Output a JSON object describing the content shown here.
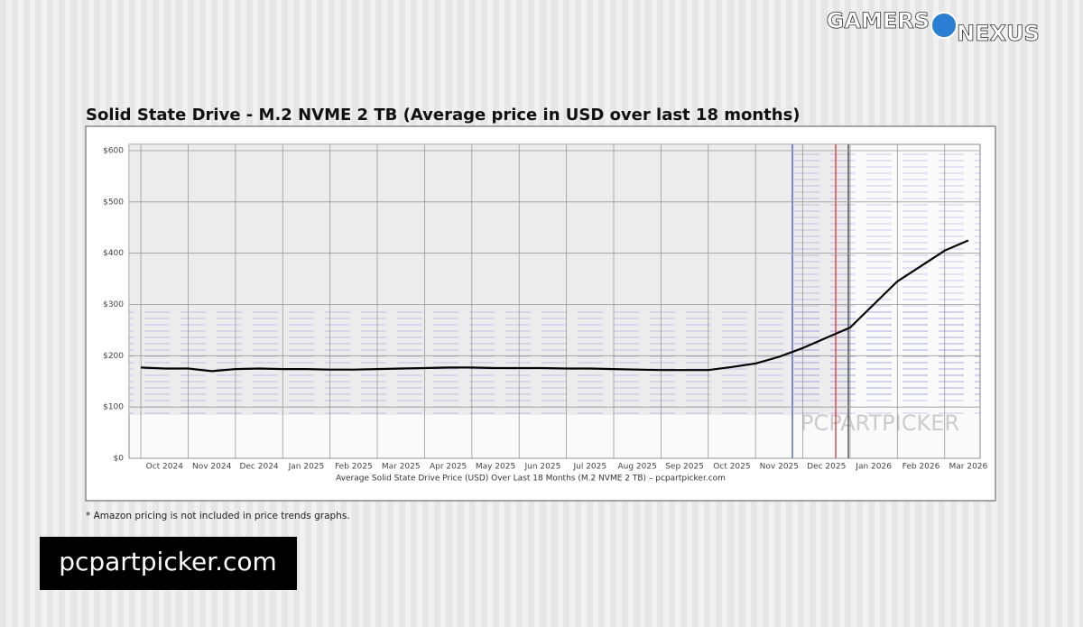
{
  "chart_data": {
    "type": "line",
    "title": "Solid State Drive - M.2 NVME 2 TB (Average price in USD over last 18 months)",
    "x_label": "Average Solid State Drive Price (USD) Over Last 18 Months (M.2 NVME 2 TB) – pcpartpicker.com",
    "categories": [
      null,
      "Oct 2024",
      null,
      "Nov 2024",
      null,
      "Dec 2024",
      null,
      "Jan 2025",
      null,
      "Feb 2025",
      null,
      "Mar 2025",
      null,
      "Apr 2025",
      null,
      "May 2025",
      null,
      "Jun 2025",
      null,
      "Jul 2025",
      null,
      "Aug 2025",
      null,
      "Sep 2025",
      null,
      "Oct 2025",
      null,
      "Nov 2025",
      null,
      "Dec 2025",
      null,
      "Jan 2026",
      null,
      "Feb 2026",
      null,
      "Mar 2026"
    ],
    "series": [
      {
        "name": "Average price",
        "color": "#000000",
        "values": [
          177,
          175,
          175,
          170,
          174,
          175,
          174,
          174,
          173,
          173,
          174,
          175,
          176,
          177,
          177,
          176,
          176,
          176,
          175,
          175,
          174,
          173,
          172,
          172,
          172,
          178,
          185,
          198,
          215,
          235,
          255,
          300,
          345,
          375,
          405,
          425
        ]
      }
    ],
    "ylim": [
      0,
      600
    ],
    "yticks": [
      {
        "value": 0,
        "label": "$0"
      },
      {
        "value": 100,
        "label": "$100"
      },
      {
        "value": 200,
        "label": "$200"
      },
      {
        "value": 300,
        "label": "$300"
      },
      {
        "value": 400,
        "label": "$400"
      },
      {
        "value": 500,
        "label": "$500"
      },
      {
        "value": 600,
        "label": "$600"
      }
    ],
    "grid": true
  },
  "footnote": "* Amazon pricing is not included in price trends graphs.",
  "source_badge": "pcpartpicker.com",
  "watermark": "PCPARTPICKER",
  "logo": {
    "left": "GAMERS",
    "right": "NEXUS"
  }
}
